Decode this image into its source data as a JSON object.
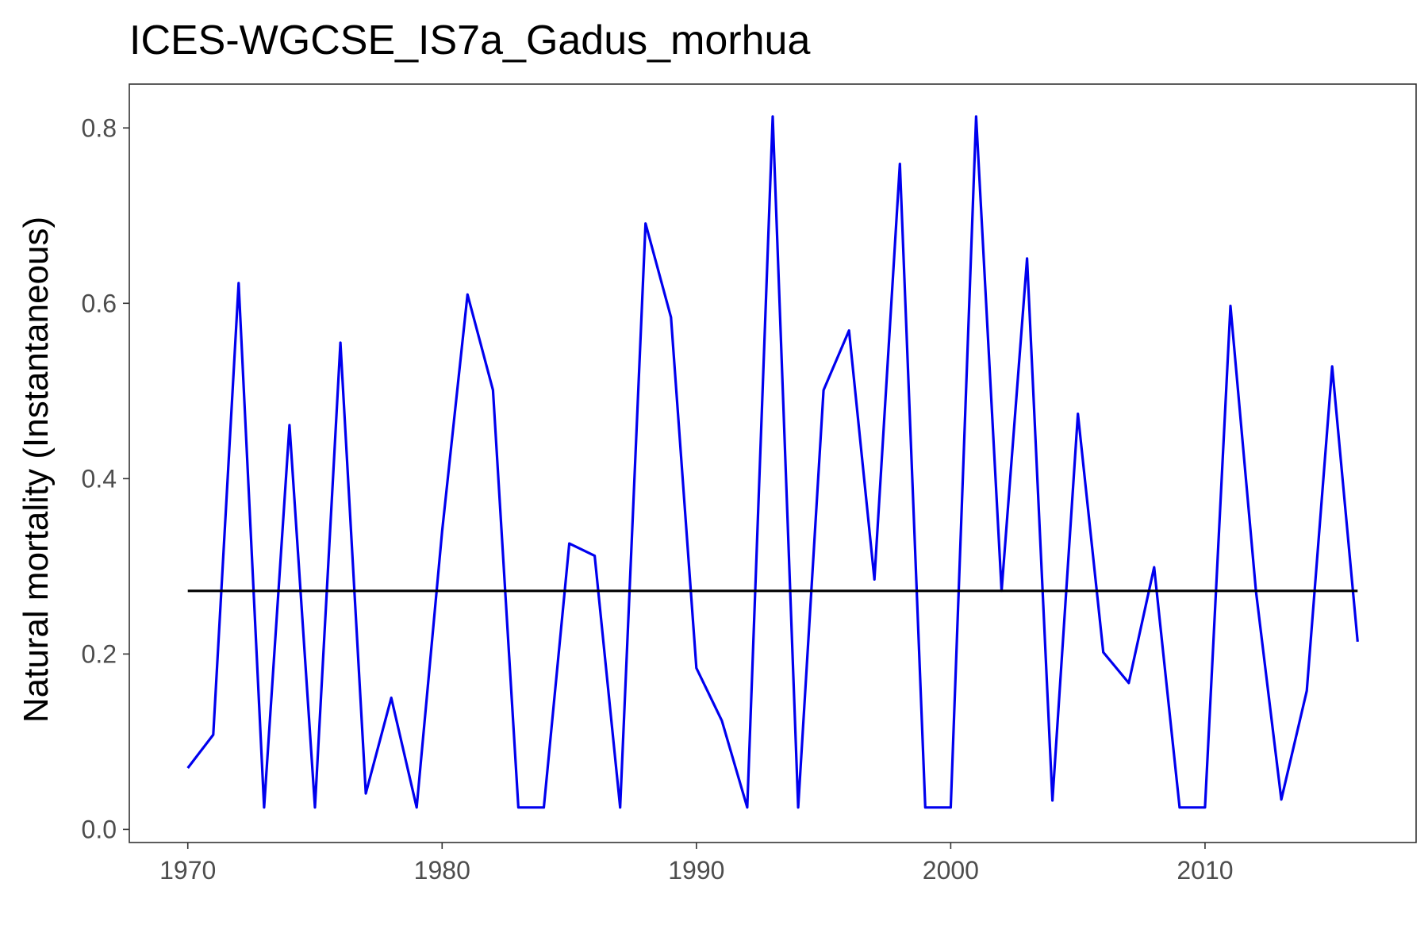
{
  "chart_data": {
    "type": "line",
    "title": "ICES-WGCSE_IS7a_Gadus_morhua",
    "xlabel": "",
    "ylabel": "Natural mortality (Instantaneous)",
    "xlim": [
      1967.7,
      2018.3
    ],
    "ylim": [
      -0.015,
      0.85
    ],
    "x_ticks": [
      1970,
      1980,
      1990,
      2000,
      2010
    ],
    "y_ticks": [
      0.0,
      0.2,
      0.4,
      0.6,
      0.8
    ],
    "y_tick_labels": [
      "0.0",
      "0.2",
      "0.4",
      "0.6",
      "0.8"
    ],
    "grid": false,
    "legend": "none",
    "series": [
      {
        "color": "#0000ee",
        "x": [
          1970,
          1971,
          1972,
          1973,
          1974,
          1975,
          1976,
          1977,
          1978,
          1979,
          1980,
          1981,
          1982,
          1983,
          1984,
          1985,
          1986,
          1987,
          1988,
          1989,
          1990,
          1991,
          1992,
          1993,
          1994,
          1995,
          1996,
          1997,
          1998,
          1999,
          2000,
          2001,
          2002,
          2003,
          2004,
          2005,
          2006,
          2007,
          2008,
          2009,
          2010,
          2011,
          2012,
          2013,
          2014,
          2015,
          2016
        ],
        "y": [
          0.07,
          0.108,
          0.623,
          0.025,
          0.461,
          0.025,
          0.555,
          0.041,
          0.15,
          0.025,
          0.34,
          0.61,
          0.501,
          0.025,
          0.025,
          0.326,
          0.312,
          0.025,
          0.691,
          0.584,
          0.184,
          0.124,
          0.025,
          0.813,
          0.025,
          0.501,
          0.569,
          0.285,
          0.759,
          0.025,
          0.025,
          0.813,
          0.272,
          0.651,
          0.033,
          0.474,
          0.202,
          0.167,
          0.299,
          0.025,
          0.025,
          0.597,
          0.272,
          0.034,
          0.158,
          0.528,
          0.214
        ]
      },
      {
        "color": "#000000",
        "x": [
          1970,
          2016
        ],
        "y": [
          0.272,
          0.272
        ]
      }
    ]
  }
}
